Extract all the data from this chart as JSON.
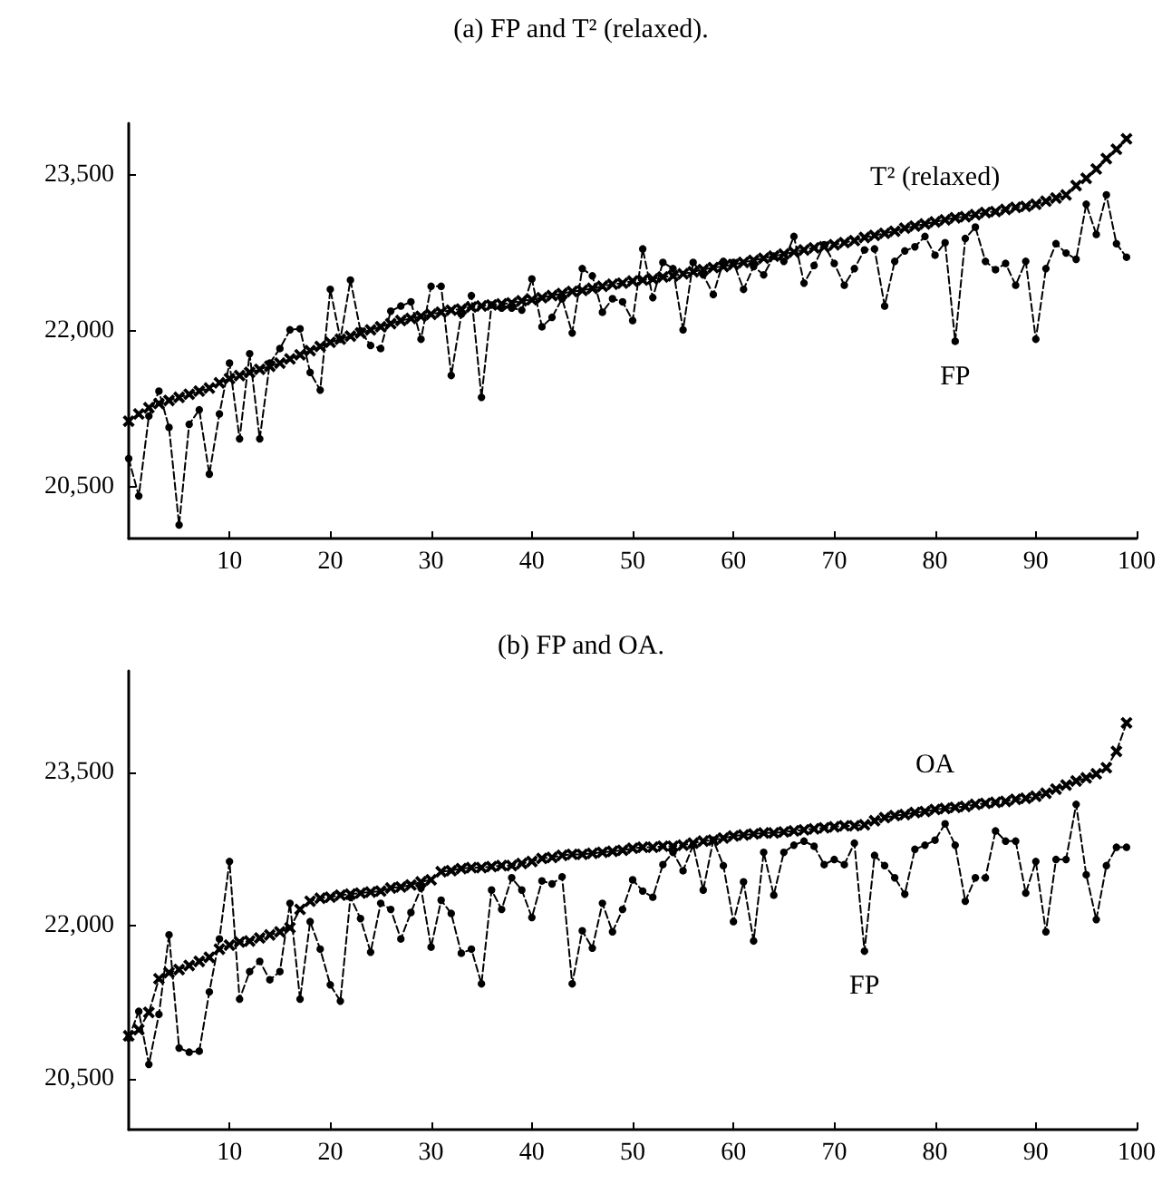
{
  "chart_data": [
    {
      "type": "line",
      "title": "(a) FP and T² (relaxed).",
      "x": [
        0,
        1,
        2,
        3,
        4,
        5,
        6,
        7,
        8,
        9,
        10,
        11,
        12,
        13,
        14,
        15,
        16,
        17,
        18,
        19,
        20,
        21,
        22,
        23,
        24,
        25,
        26,
        27,
        28,
        29,
        30,
        31,
        32,
        33,
        34,
        35,
        36,
        37,
        38,
        39,
        40,
        41,
        42,
        43,
        44,
        45,
        46,
        47,
        48,
        49,
        50,
        51,
        52,
        53,
        54,
        55,
        56,
        57,
        58,
        59,
        60,
        61,
        62,
        63,
        64,
        65,
        66,
        67,
        68,
        69,
        70,
        71,
        72,
        73,
        74,
        75,
        76,
        77,
        78,
        79,
        80,
        81,
        82,
        83,
        84,
        85,
        86,
        87,
        88,
        89,
        90,
        91,
        92,
        93,
        94,
        95,
        96,
        97,
        98,
        99
      ],
      "series": [
        {
          "name": "T² (relaxed)",
          "color": "#000000",
          "marker": "cross",
          "values": [
            21130,
            21200,
            21260,
            21300,
            21330,
            21360,
            21390,
            21420,
            21450,
            21500,
            21540,
            21570,
            21600,
            21630,
            21660,
            21690,
            21730,
            21770,
            21810,
            21850,
            21890,
            21920,
            21950,
            21980,
            22010,
            22040,
            22070,
            22100,
            22120,
            22140,
            22160,
            22180,
            22200,
            22210,
            22230,
            22240,
            22250,
            22260,
            22270,
            22290,
            22300,
            22320,
            22340,
            22360,
            22380,
            22390,
            22410,
            22430,
            22450,
            22460,
            22480,
            22490,
            22500,
            22520,
            22530,
            22550,
            22570,
            22590,
            22610,
            22620,
            22640,
            22660,
            22680,
            22700,
            22720,
            22740,
            22760,
            22780,
            22800,
            22810,
            22830,
            22850,
            22870,
            22900,
            22920,
            22940,
            22960,
            22990,
            23010,
            23030,
            23050,
            23070,
            23090,
            23100,
            23120,
            23140,
            23150,
            23170,
            23190,
            23200,
            23220,
            23250,
            23280,
            23310,
            23400,
            23470,
            23560,
            23660,
            23750,
            23850
          ]
        },
        {
          "name": "FP",
          "color": "#000000",
          "marker": "circle",
          "values": [
            20770,
            20410,
            21180,
            21420,
            21070,
            20130,
            21100,
            21240,
            20620,
            21200,
            21690,
            20960,
            21780,
            20960,
            21690,
            21830,
            22010,
            22020,
            21600,
            21430,
            22400,
            21920,
            22490,
            22000,
            21860,
            21830,
            22190,
            22240,
            22280,
            21920,
            22430,
            22430,
            21570,
            22160,
            22340,
            21360,
            22250,
            22220,
            22220,
            22200,
            22500,
            22040,
            22130,
            22310,
            21980,
            22600,
            22530,
            22180,
            22310,
            22280,
            22100,
            22790,
            22320,
            22660,
            22600,
            22010,
            22660,
            22540,
            22350,
            22670,
            22660,
            22400,
            22620,
            22540,
            22720,
            22670,
            22910,
            22460,
            22630,
            22830,
            22650,
            22440,
            22600,
            22780,
            22790,
            22240,
            22670,
            22770,
            22810,
            22910,
            22730,
            22850,
            21900,
            22890,
            23000,
            22670,
            22590,
            22650,
            22440,
            22670,
            21920,
            22600,
            22840,
            22750,
            22690,
            23220,
            22930,
            23310,
            22840,
            22710
          ]
        }
      ],
      "xlim": [
        0,
        100
      ],
      "xticks": [
        10,
        20,
        30,
        40,
        50,
        60,
        70,
        80,
        90,
        100
      ],
      "ylim": [
        20000,
        24000
      ],
      "yticks": [
        {
          "value": 20500,
          "label": "20,500"
        },
        {
          "value": 22000,
          "label": "22,000"
        },
        {
          "value": 23500,
          "label": "23,500"
        }
      ],
      "line_style": "dashed",
      "grid": false,
      "legend": false
    },
    {
      "type": "line",
      "title": "(b) FP and OA.",
      "x": [
        0,
        1,
        2,
        3,
        4,
        5,
        6,
        7,
        8,
        9,
        10,
        11,
        12,
        13,
        14,
        15,
        16,
        17,
        18,
        19,
        20,
        21,
        22,
        23,
        24,
        25,
        26,
        27,
        28,
        29,
        30,
        31,
        32,
        33,
        34,
        35,
        36,
        37,
        38,
        39,
        40,
        41,
        42,
        43,
        44,
        45,
        46,
        47,
        48,
        49,
        50,
        51,
        52,
        53,
        54,
        55,
        56,
        57,
        58,
        59,
        60,
        61,
        62,
        63,
        64,
        65,
        66,
        67,
        68,
        69,
        70,
        71,
        72,
        73,
        74,
        75,
        76,
        77,
        78,
        79,
        80,
        81,
        82,
        83,
        84,
        85,
        86,
        87,
        88,
        89,
        90,
        91,
        92,
        93,
        94,
        95,
        96,
        97,
        98,
        99
      ],
      "series": [
        {
          "name": "OA",
          "color": "#000000",
          "marker": "cross",
          "values": [
            20920,
            20980,
            21150,
            21480,
            21540,
            21570,
            21610,
            21650,
            21690,
            21770,
            21810,
            21840,
            21850,
            21880,
            21910,
            21940,
            21980,
            22160,
            22240,
            22270,
            22280,
            22300,
            22310,
            22320,
            22330,
            22340,
            22370,
            22380,
            22400,
            22430,
            22450,
            22530,
            22540,
            22560,
            22570,
            22570,
            22580,
            22590,
            22590,
            22610,
            22630,
            22660,
            22670,
            22690,
            22700,
            22700,
            22710,
            22720,
            22730,
            22740,
            22760,
            22770,
            22770,
            22780,
            22780,
            22790,
            22810,
            22830,
            22840,
            22860,
            22880,
            22890,
            22900,
            22910,
            22910,
            22920,
            22930,
            22940,
            22950,
            22960,
            22970,
            22980,
            22980,
            22990,
            23030,
            23060,
            23080,
            23090,
            23110,
            23120,
            23140,
            23150,
            23160,
            23170,
            23190,
            23200,
            23210,
            23220,
            23240,
            23250,
            23270,
            23300,
            23340,
            23380,
            23420,
            23450,
            23490,
            23550,
            23710,
            23990
          ]
        },
        {
          "name": "FP",
          "color": "#000000",
          "marker": "circle",
          "values": [
            20900,
            21160,
            20640,
            21130,
            21910,
            20800,
            20760,
            20770,
            21350,
            21870,
            22630,
            21280,
            21550,
            21650,
            21470,
            21550,
            22220,
            21280,
            22040,
            21770,
            21420,
            21260,
            22280,
            22070,
            21740,
            22220,
            22160,
            21870,
            22130,
            22370,
            21790,
            22250,
            22120,
            21730,
            21770,
            21430,
            22350,
            22160,
            22470,
            22350,
            22080,
            22440,
            22410,
            22480,
            21430,
            21950,
            21780,
            22220,
            21940,
            22160,
            22450,
            22340,
            22280,
            22600,
            22720,
            22540,
            22790,
            22350,
            22840,
            22590,
            22040,
            22430,
            21850,
            22720,
            22300,
            22720,
            22790,
            22830,
            22780,
            22600,
            22650,
            22600,
            22810,
            21750,
            22690,
            22590,
            22470,
            22310,
            22750,
            22790,
            22840,
            23000,
            22790,
            22240,
            22470,
            22470,
            22930,
            22830,
            22830,
            22320,
            22630,
            21940,
            22650,
            22650,
            23190,
            22500,
            22060,
            22590,
            22770,
            22770
          ]
        }
      ],
      "xlim": [
        0,
        100
      ],
      "xticks": [
        10,
        20,
        30,
        40,
        50,
        60,
        70,
        80,
        90,
        100
      ],
      "ylim": [
        20000,
        24500
      ],
      "yticks": [
        {
          "value": 20500,
          "label": "20,500"
        },
        {
          "value": 22000,
          "label": "22,000"
        },
        {
          "value": 23500,
          "label": "23,500"
        }
      ],
      "line_style": "dashed",
      "grid": false,
      "legend": false
    }
  ]
}
